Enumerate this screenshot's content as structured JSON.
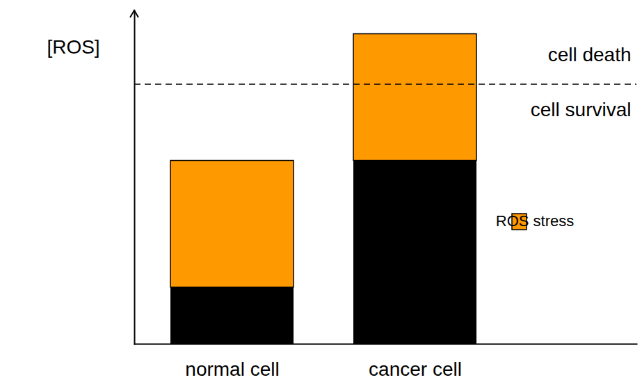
{
  "chart_data": {
    "type": "bar",
    "stacked": true,
    "y_label": "[ROS]",
    "categories": [
      "normal cell",
      "cancer cell"
    ],
    "series": [
      {
        "name": null,
        "color": "#000000",
        "values": [
          17,
          55
        ]
      },
      {
        "name": "ROS stress",
        "color": "#ff9900",
        "values": [
          38,
          38
        ]
      }
    ],
    "ylim": [
      0,
      100
    ],
    "yticks": [],
    "tick_labels": "x",
    "grid": false,
    "legend": "right",
    "reference_line": {
      "value": 78,
      "line_style": "dashed"
    },
    "annotations": [
      "cell death",
      "cell survival"
    ]
  }
}
